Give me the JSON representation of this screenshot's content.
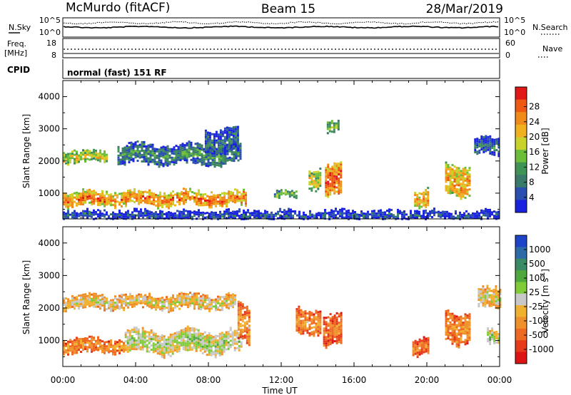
{
  "header": {
    "station": "McMurdo (fitACF)",
    "beam": "Beam 15",
    "date": "28/Mar/2019"
  },
  "strips": {
    "nsky_label": "N.Sky",
    "nsky_ticks": [
      "10^5",
      "10^0"
    ],
    "nsearch_label": "N.Search",
    "nsearch_ticks": [
      "10^5",
      "10^0"
    ],
    "freq_label_line1": "Freq.",
    "freq_label_line2": "[MHz]",
    "freq_ticks": [
      "18",
      "8"
    ],
    "nave_label": "Nave",
    "nave_ticks": [
      "60",
      "0"
    ],
    "cpid_label": "CPID",
    "mode_text": "normal (fast) 151 RF"
  },
  "axes": {
    "ylabel": "Slant Range [km]",
    "xlabel": "Time UT",
    "y_ticks": [
      "1000",
      "2000",
      "3000",
      "4000"
    ],
    "x_ticks": [
      "00:00",
      "04:00",
      "08:00",
      "12:00",
      "16:00",
      "20:00",
      "00:00"
    ]
  },
  "colorbars": {
    "power": {
      "label": "Power [dB]",
      "ticks": [
        "4",
        "8",
        "12",
        "16",
        "20",
        "24",
        "28"
      ],
      "colors": [
        "#1a22e0",
        "#2a4fb0",
        "#3a7a6a",
        "#3f9455",
        "#6cbd3a",
        "#c8d22a",
        "#f0b020",
        "#f08a18",
        "#ee5a14",
        "#e01818"
      ]
    },
    "velocity": {
      "label": "Velocity [m s",
      "label_exp": "-1",
      "label_end": "]",
      "ticks": [
        "1000",
        "500",
        "100",
        "25",
        "-25",
        "-100",
        "-500",
        "-1000"
      ],
      "colors": [
        "#1e44c8",
        "#2f6aa8",
        "#3b8a66",
        "#4ea83e",
        "#80cc38",
        "#c8c8c8",
        "#f0b030",
        "#f0902a",
        "#ee6a22",
        "#e63a1a",
        "#dd1414"
      ]
    }
  },
  "chart_data": [
    {
      "type": "heatmap",
      "title": "Power",
      "x_range_hours": [
        0,
        24
      ],
      "y_range_km": [
        200,
        4500
      ],
      "color_range": [
        0,
        30
      ],
      "bands": [
        {
          "t": [
            0.0,
            10.1
          ],
          "r": [
            650,
            1050
          ],
          "value": 24
        },
        {
          "t": [
            0.0,
            2.4
          ],
          "r": [
            2000,
            2300
          ],
          "value": 18
        },
        {
          "t": [
            3.0,
            9.8
          ],
          "r": [
            1950,
            2500
          ],
          "value": 10
        },
        {
          "t": [
            7.8,
            9.6
          ],
          "r": [
            2300,
            3000
          ],
          "value": 8
        },
        {
          "t": [
            11.6,
            12.8
          ],
          "r": [
            900,
            1050
          ],
          "value": 14
        },
        {
          "t": [
            13.5,
            14.2
          ],
          "r": [
            1200,
            1800
          ],
          "value": 18
        },
        {
          "t": [
            14.4,
            15.3
          ],
          "r": [
            850,
            1800
          ],
          "value": 26
        },
        {
          "t": [
            14.5,
            15.2
          ],
          "r": [
            2900,
            3200
          ],
          "value": 16
        },
        {
          "t": [
            19.3,
            20.1
          ],
          "r": [
            600,
            1100
          ],
          "value": 22
        },
        {
          "t": [
            21.0,
            22.4
          ],
          "r": [
            1000,
            1900
          ],
          "value": 22
        },
        {
          "t": [
            22.6,
            24.0
          ],
          "r": [
            2200,
            2700
          ],
          "value": 8
        },
        {
          "t": [
            0.0,
            24.0
          ],
          "r": [
            200,
            450
          ],
          "value": 6
        }
      ]
    },
    {
      "type": "heatmap",
      "title": "Velocity",
      "x_range_hours": [
        0,
        24
      ],
      "y_range_km": [
        200,
        4500
      ],
      "color_range": [
        -1000,
        1000
      ],
      "bands": [
        {
          "t": [
            0.0,
            3.4
          ],
          "r": [
            650,
            1050
          ],
          "value": -300
        },
        {
          "t": [
            3.4,
            9.8
          ],
          "r": [
            650,
            1300
          ],
          "value": 150
        },
        {
          "t": [
            0.0,
            9.5
          ],
          "r": [
            2000,
            2400
          ],
          "value": 0
        },
        {
          "t": [
            9.6,
            10.2
          ],
          "r": [
            900,
            2000
          ],
          "value": -300
        },
        {
          "t": [
            12.8,
            14.2
          ],
          "r": [
            1300,
            2000
          ],
          "value": -300
        },
        {
          "t": [
            14.3,
            15.3
          ],
          "r": [
            800,
            1700
          ],
          "value": -400
        },
        {
          "t": [
            19.2,
            20.1
          ],
          "r": [
            600,
            1100
          ],
          "value": -400
        },
        {
          "t": [
            21.0,
            22.3
          ],
          "r": [
            1000,
            1900
          ],
          "value": -300
        },
        {
          "t": [
            22.8,
            24.0
          ],
          "r": [
            2000,
            2600
          ],
          "value": 0
        },
        {
          "t": [
            23.3,
            24.0
          ],
          "r": [
            900,
            1300
          ],
          "value": 150
        }
      ]
    }
  ]
}
